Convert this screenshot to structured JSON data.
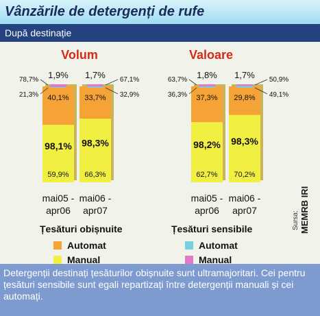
{
  "header": {
    "title": "Vânzările de detergenți de rufe"
  },
  "subheader": {
    "text": "După destinație"
  },
  "footer": {
    "text": "Detergenții destinați țesăturilor obișnuite sunt ultramajoritari. Cei pentru țesături sensibile sunt egali repartizați între detergenții manuali și cei automați."
  },
  "source": {
    "label": "Sursa:",
    "logo": "MEMRB IRI"
  },
  "colors": {
    "automat": "#f5a236",
    "manual": "#f2ef43",
    "automat_sensibile": "#78cfe0",
    "manual_sensibile": "#e07ac8",
    "title_red": "#d42a17"
  },
  "chart_data": [
    {
      "type": "bar",
      "title": "Volum",
      "categories": [
        "mai05 - apr06",
        "mai06 - apr07"
      ],
      "category_lines": [
        [
          "mai05 -",
          "apr06"
        ],
        [
          "mai06 -",
          "apr07"
        ]
      ],
      "series": [
        {
          "name": "Manual",
          "values": [
            59.9,
            66.3
          ]
        },
        {
          "name": "Automat",
          "values": [
            40.1,
            33.7
          ]
        }
      ],
      "sensibile_stack": [
        {
          "manual": 78.7,
          "automat": 21.3
        },
        {
          "manual": 67.1,
          "automat": 32.9
        }
      ],
      "group_labels": [
        "Țesături obișnuite",
        "Țesături sensibile"
      ],
      "obisnuite_share": [
        98.1,
        98.3
      ],
      "sensibile_share": [
        1.9,
        1.7
      ],
      "labels": {
        "share": [
          "98,1%",
          "98,3%"
        ],
        "top": [
          "1,9%",
          "1,7%"
        ],
        "automat": [
          "40,1%",
          "33,7%"
        ],
        "manual": [
          "59,9%",
          "66,3%"
        ],
        "side": [
          [
            "78,7%",
            "21,3%"
          ],
          [
            "67,1%",
            "32,9%"
          ]
        ]
      },
      "stacked": true,
      "ylim": [
        0,
        100
      ]
    },
    {
      "type": "bar",
      "title": "Valoare",
      "categories": [
        "mai05 - apr06",
        "mai06 - apr07"
      ],
      "category_lines": [
        [
          "mai05 -",
          "apr06"
        ],
        [
          "mai06 -",
          "apr07"
        ]
      ],
      "series": [
        {
          "name": "Manual",
          "values": [
            62.7,
            70.2
          ]
        },
        {
          "name": "Automat",
          "values": [
            37.3,
            29.8
          ]
        }
      ],
      "sensibile_stack": [
        {
          "manual": 63.7,
          "automat": 36.3
        },
        {
          "manual": 50.9,
          "automat": 49.1
        }
      ],
      "group_labels": [
        "Țesături obișnuite",
        "Țesături sensibile"
      ],
      "obisnuite_share": [
        98.2,
        98.3
      ],
      "sensibile_share": [
        1.8,
        1.7
      ],
      "labels": {
        "share": [
          "98,2%",
          "98,3%"
        ],
        "top": [
          "1,8%",
          "1,7%"
        ],
        "automat": [
          "37,3%",
          "29,8%"
        ],
        "manual": [
          "62,7%",
          "70,2%"
        ],
        "side": [
          [
            "63,7%",
            "36,3%"
          ],
          [
            "50,9%",
            "49,1%"
          ]
        ]
      },
      "stacked": true,
      "ylim": [
        0,
        100
      ]
    }
  ],
  "legend": [
    {
      "group": "Țesături obișnuite",
      "items": [
        {
          "label": "Automat"
        },
        {
          "label": "Manual"
        }
      ]
    },
    {
      "group": "Țesături sensibile",
      "items": [
        {
          "label": "Automat"
        },
        {
          "label": "Manual"
        }
      ]
    }
  ]
}
